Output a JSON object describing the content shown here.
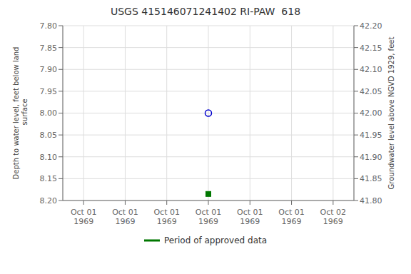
{
  "chart_data": {
    "type": "scatter",
    "title": "USGS 415146071241402 RI-PAW  618",
    "ylabel": "Depth to water level, feet below land\n surface",
    "y2label": "Groundwater level above NGVD 1929, feet",
    "categories": [
      "Oct 01\n1969",
      "Oct 01\n1969",
      "Oct 01\n1969",
      "Oct 01\n1969",
      "Oct 01\n1969",
      "Oct 01\n1969",
      "Oct 02\n1969"
    ],
    "series": [
      {
        "color": "#0000cc",
        "marker": "circle",
        "values": [
          null,
          null,
          null,
          8.0,
          null,
          null,
          null
        ]
      },
      {
        "name": "Period of approved data",
        "color": "#007700",
        "marker": "square",
        "values": [
          null,
          null,
          null,
          8.185,
          null,
          null,
          null
        ]
      }
    ],
    "ylim": [
      8.2,
      7.8
    ],
    "yticks": [
      {
        "value": 7.8,
        "label": "7.80"
      },
      7.85,
      {
        "value": 7.9,
        "label": "7.90"
      },
      7.95,
      {
        "value": 8.0,
        "label": "8.00"
      },
      8.05,
      {
        "value": 8.1,
        "label": "8.10"
      },
      8.15,
      {
        "value": 8.2,
        "label": "8.20"
      }
    ],
    "y2lim": [
      41.8,
      42.2
    ],
    "y2ticks": [
      {
        "value": 41.8,
        "label": "41.80"
      },
      41.85,
      {
        "value": 41.9,
        "label": "41.90"
      },
      41.95,
      {
        "value": 42.0,
        "label": "42.00"
      },
      42.05,
      {
        "value": 42.1,
        "label": "42.10"
      },
      42.15,
      {
        "value": 42.2,
        "label": "42.20"
      }
    ],
    "grid": true,
    "legend": "bottom"
  }
}
